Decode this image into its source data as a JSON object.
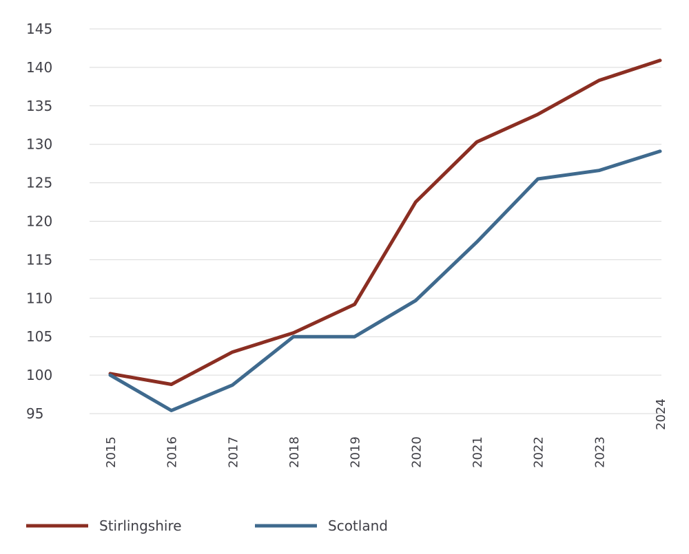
{
  "chart_data": {
    "type": "line",
    "title": "",
    "xlabel": "",
    "ylabel": "",
    "x": [
      "2015",
      "2016",
      "2017",
      "2018",
      "2019",
      "2020",
      "2021",
      "2022",
      "2023",
      "2024"
    ],
    "yticks": [
      95,
      100,
      105,
      110,
      115,
      120,
      125,
      130,
      135,
      140,
      145
    ],
    "ylim": [
      95,
      145
    ],
    "grid": "horizontal",
    "legend_position": "bottom",
    "series": [
      {
        "name": "Stirlingshire",
        "color": "#8b2e22",
        "values": [
          100.2,
          98.8,
          103.0,
          105.5,
          109.2,
          122.5,
          130.3,
          133.9,
          138.3,
          140.9
        ]
      },
      {
        "name": "Scotland",
        "color": "#3f6a8e",
        "values": [
          100.0,
          95.4,
          98.7,
          105.0,
          105.0,
          109.7,
          117.3,
          125.5,
          126.6,
          129.1
        ]
      }
    ]
  }
}
